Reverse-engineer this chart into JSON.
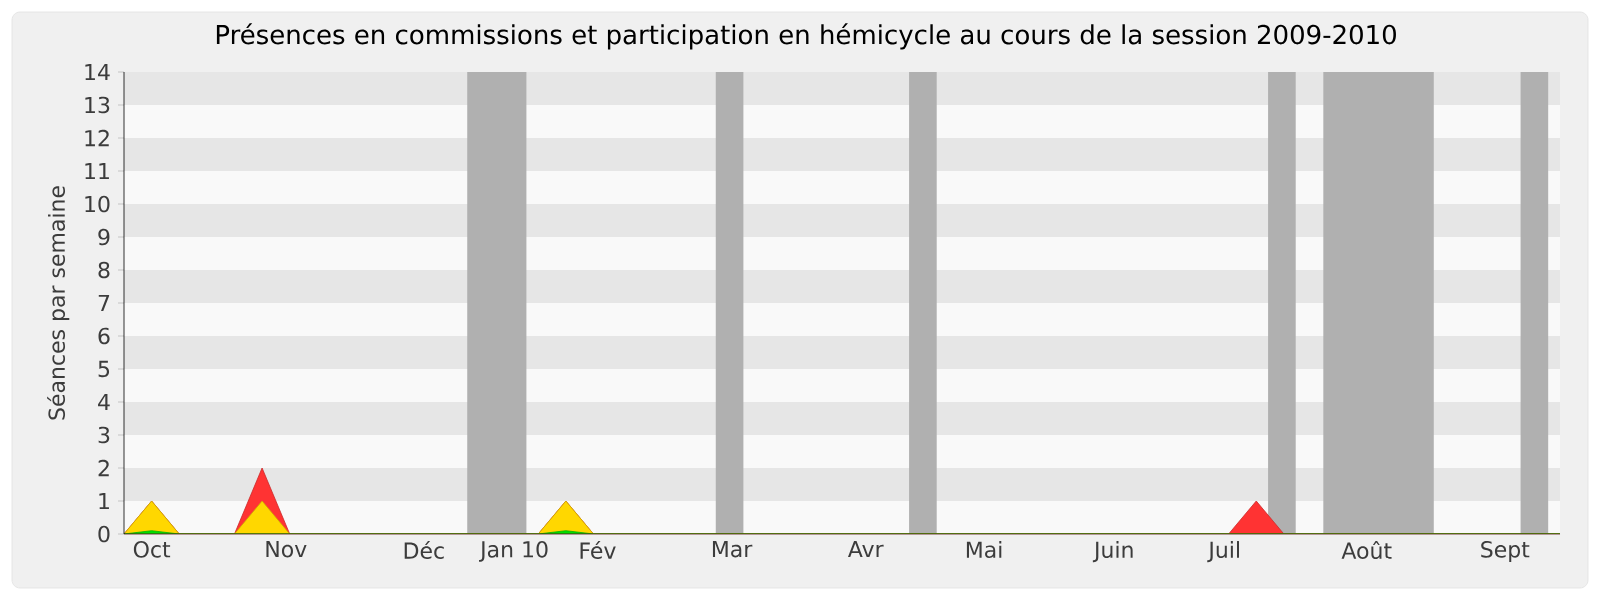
{
  "chart_data": {
    "type": "area",
    "title": "Présences en commissions et participation en hémicycle au cours de la session 2009-2010",
    "ylabel": "Séances par semaine",
    "x": [
      "2009-09-28",
      "2009-10-05",
      "2009-10-12",
      "2009-10-19",
      "2009-10-26",
      "2009-11-02",
      "2009-11-09",
      "2009-11-16",
      "2009-11-23",
      "2009-11-30",
      "2009-12-07",
      "2009-12-14",
      "2009-12-21",
      "2009-12-28",
      "2010-01-04",
      "2010-01-11",
      "2010-01-18",
      "2010-01-25",
      "2010-02-01",
      "2010-02-08",
      "2010-02-15",
      "2010-02-22",
      "2010-03-01",
      "2010-03-08",
      "2010-03-15",
      "2010-03-22",
      "2010-03-29",
      "2010-04-05",
      "2010-04-12",
      "2010-04-19",
      "2010-04-26",
      "2010-05-03",
      "2010-05-10",
      "2010-05-17",
      "2010-05-24",
      "2010-05-31",
      "2010-06-07",
      "2010-06-14",
      "2010-06-21",
      "2010-06-28",
      "2010-07-05",
      "2010-07-12",
      "2010-07-19",
      "2010-07-26",
      "2010-08-02",
      "2010-08-09",
      "2010-08-16",
      "2010-08-23",
      "2010-08-30",
      "2010-09-06",
      "2010-09-13",
      "2010-09-20",
      "2010-09-27"
    ],
    "series": [
      {
        "color": "#ff3333",
        "values": [
          0,
          1,
          0,
          0,
          0,
          2,
          0,
          0,
          0,
          0,
          0,
          0,
          0,
          0,
          0,
          0,
          1,
          0,
          0,
          0,
          0,
          0,
          0,
          0,
          0,
          0,
          0,
          0,
          0,
          0,
          0,
          0,
          0,
          0,
          0,
          0,
          0,
          0,
          0,
          0,
          0,
          1,
          0,
          0,
          0,
          0,
          0,
          0,
          0,
          0,
          0,
          0,
          0
        ]
      },
      {
        "color": "#ffd700",
        "values": [
          0,
          1,
          0,
          0,
          0,
          1,
          0,
          0,
          0,
          0,
          0,
          0,
          0,
          0,
          0,
          0,
          1,
          0,
          0,
          0,
          0,
          0,
          0,
          0,
          0,
          0,
          0,
          0,
          0,
          0,
          0,
          0,
          0,
          0,
          0,
          0,
          0,
          0,
          0,
          0,
          0,
          0,
          0,
          0,
          0,
          0,
          0,
          0,
          0,
          0,
          0,
          0,
          0
        ]
      },
      {
        "color": "#00e000",
        "values": [
          0,
          0.1,
          0,
          0,
          0,
          0,
          0,
          0,
          0,
          0,
          0,
          0,
          0,
          0,
          0,
          0,
          0.1,
          0,
          0,
          0,
          0,
          0,
          0,
          0,
          0,
          0,
          0,
          0,
          0,
          0,
          0,
          0,
          0,
          0,
          0,
          0,
          0,
          0,
          0,
          0,
          0,
          0,
          0,
          0,
          0,
          0,
          0,
          0,
          0,
          0,
          0,
          0,
          0
        ]
      }
    ],
    "xlim": [
      "2009-09-28",
      "2010-09-27"
    ],
    "ylim": [
      0,
      14
    ],
    "yticks": [
      0,
      1,
      2,
      3,
      4,
      5,
      6,
      7,
      8,
      9,
      10,
      11,
      12,
      13,
      14
    ],
    "xticks": [
      {
        "value": "2009-10-05",
        "label": "Oct"
      },
      {
        "value": "2009-11-08",
        "label": "Nov"
      },
      {
        "value": "2009-12-13",
        "label": "Déc"
      },
      {
        "value": "2010-01-05",
        "label": "Jan 10"
      },
      {
        "value": "2010-01-26",
        "label": "Fév"
      },
      {
        "value": "2010-03-01",
        "label": "Mar"
      },
      {
        "value": "2010-04-04",
        "label": "Avr"
      },
      {
        "value": "2010-05-04",
        "label": "Mai"
      },
      {
        "value": "2010-06-06",
        "label": "Juin"
      },
      {
        "value": "2010-07-04",
        "label": "Juil"
      },
      {
        "value": "2010-08-09",
        "label": "Août"
      },
      {
        "value": "2010-09-13",
        "label": "Sept"
      }
    ],
    "bands": [
      {
        "axis": "x",
        "from": "2009-12-24",
        "to": "2010-01-08",
        "color": "#b0b0b0"
      },
      {
        "axis": "x",
        "from": "2010-02-25",
        "to": "2010-03-04",
        "color": "#b0b0b0"
      },
      {
        "axis": "x",
        "from": "2010-04-15",
        "to": "2010-04-22",
        "color": "#b0b0b0"
      },
      {
        "axis": "x",
        "from": "2010-07-15",
        "to": "2010-07-22",
        "color": "#b0b0b0"
      },
      {
        "axis": "x",
        "from": "2010-07-29",
        "to": "2010-08-26",
        "color": "#b0b0b0"
      },
      {
        "axis": "x",
        "from": "2010-09-17",
        "to": "2010-09-24",
        "color": "#b0b0b0"
      }
    ]
  }
}
